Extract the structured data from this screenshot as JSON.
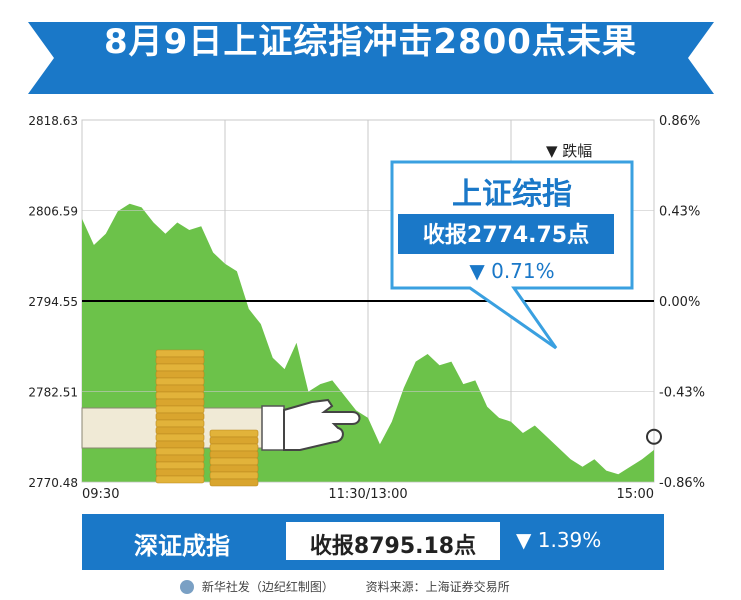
{
  "title": "8月9日上证综指冲击2800点未果",
  "colors": {
    "banner": "#1a78c8",
    "area_fill": "#6cc24a",
    "callout_border": "#3aa0e0",
    "callout_title": "#1a78c8",
    "axis_line": "#000000",
    "coin": "#e2b33a"
  },
  "callout": {
    "index_name": "上证综指",
    "close_text": "收报2774.75点",
    "change_text": "▼ 0.71%"
  },
  "legend_label": "▼ 跌幅",
  "shenzhen": {
    "name": "深证成指",
    "close_text": "收报8795.18点",
    "change_text": "▼ 1.39%"
  },
  "footer": {
    "credit": "新华社发（边纪红制图）",
    "source": "资料来源：上海证券交易所"
  },
  "chart_data": {
    "type": "area",
    "title": "8月9日上证综指冲击2800点未果",
    "y_ticks_left": [
      "2818.63",
      "2806.59",
      "2794.55",
      "2782.51",
      "2770.48"
    ],
    "y_ticks_right": [
      "0.86%",
      "0.43%",
      "0.00%",
      "-0.43%",
      "-0.86%"
    ],
    "ylim": [
      2770.48,
      2818.63
    ],
    "prev_close": 2794.55,
    "x_tick_labels": [
      "09:30",
      "11:30/13:00",
      "15:00"
    ],
    "x_tick_positions": [
      0,
      120,
      240
    ],
    "x_minutes": [
      0,
      5,
      10,
      15,
      20,
      25,
      30,
      35,
      40,
      45,
      50,
      55,
      60,
      65,
      70,
      75,
      80,
      85,
      90,
      95,
      100,
      105,
      110,
      115,
      120,
      125,
      130,
      135,
      140,
      145,
      150,
      155,
      160,
      165,
      170,
      175,
      180,
      185,
      190,
      195,
      200,
      205,
      210,
      215,
      220,
      225,
      230,
      235,
      240
    ],
    "values": [
      2805.5,
      2802.0,
      2803.5,
      2806.5,
      2807.5,
      2807.0,
      2805.0,
      2803.5,
      2805.0,
      2804.0,
      2804.5,
      2801.0,
      2799.5,
      2798.5,
      2793.5,
      2791.5,
      2787.0,
      2785.5,
      2789.0,
      2782.5,
      2783.5,
      2784.0,
      2782.0,
      2780.0,
      2779.0,
      2775.5,
      2778.5,
      2783.0,
      2786.5,
      2787.5,
      2786.0,
      2786.5,
      2783.5,
      2784.0,
      2780.5,
      2779.0,
      2778.5,
      2777.0,
      2778.0,
      2776.5,
      2775.0,
      2773.5,
      2772.5,
      2773.5,
      2772.0,
      2771.5,
      2772.5,
      2773.5,
      2774.75
    ],
    "grid": true,
    "final_value": 2774.75
  }
}
